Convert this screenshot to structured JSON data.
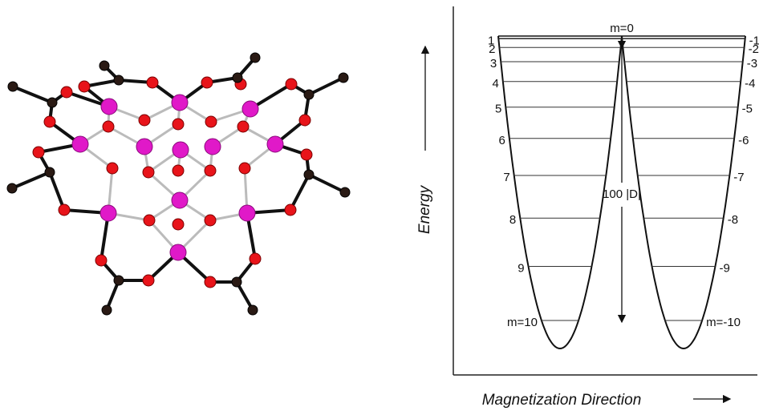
{
  "diagram": {
    "y_axis_label": "Energy",
    "x_axis_label": "Magnetization Direction",
    "top_label": "m=0",
    "barrier_label": "100 |D|",
    "left_levels": [
      "1",
      "2",
      "3",
      "4",
      "5",
      "6",
      "7",
      "8",
      "9",
      "m=10"
    ],
    "right_levels": [
      "-1",
      "-2",
      "-3",
      "-4",
      "-5",
      "-6",
      "-7",
      "-8",
      "-9",
      "m=-10"
    ]
  }
}
